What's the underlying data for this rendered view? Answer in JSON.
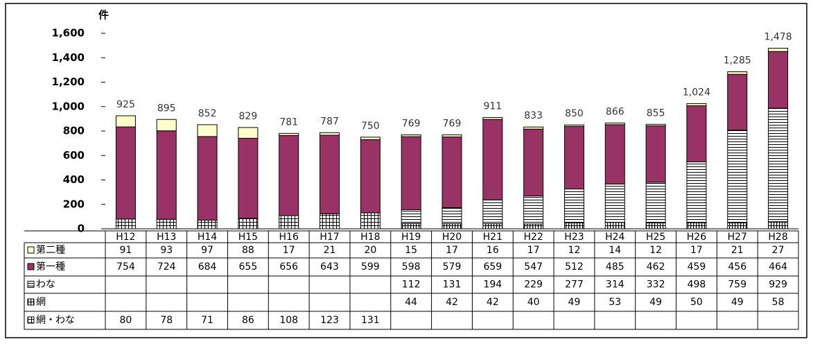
{
  "chart_data": {
    "type": "stacked-bar",
    "y_label": "件",
    "categories": [
      "H12",
      "H13",
      "H14",
      "H15",
      "H16",
      "H17",
      "H18",
      "H19",
      "H20",
      "H21",
      "H22",
      "H23",
      "H24",
      "H25",
      "H26",
      "H27",
      "H28"
    ],
    "series": [
      {
        "name": "第二種",
        "color": "#ffffcc",
        "values": [
          91,
          93,
          97,
          88,
          17,
          21,
          20,
          15,
          17,
          16,
          17,
          12,
          14,
          12,
          17,
          21,
          27
        ]
      },
      {
        "name": "第一種",
        "color": "#993366",
        "values": [
          754,
          724,
          684,
          655,
          656,
          643,
          599,
          598,
          579,
          659,
          547,
          512,
          485,
          462,
          459,
          456,
          464
        ]
      },
      {
        "name": "わな",
        "color": "#ffffff",
        "pattern": "horizontal",
        "values": [
          null,
          null,
          null,
          null,
          null,
          null,
          null,
          112,
          131,
          194,
          229,
          277,
          314,
          332,
          498,
          759,
          929
        ]
      },
      {
        "name": "網",
        "color": "#ffffff",
        "pattern": "vertical",
        "values": [
          null,
          null,
          null,
          null,
          null,
          null,
          null,
          44,
          42,
          42,
          40,
          49,
          53,
          49,
          50,
          49,
          58
        ]
      },
      {
        "name": "網・わな",
        "color": "#ffffff",
        "pattern": "grid",
        "values": [
          80,
          78,
          71,
          86,
          108,
          123,
          131,
          null,
          null,
          null,
          null,
          null,
          null,
          null,
          null,
          null,
          null
        ]
      }
    ],
    "totals": [
      925,
      895,
      852,
      829,
      781,
      787,
      750,
      769,
      769,
      911,
      833,
      850,
      866,
      855,
      1024,
      1285,
      1478
    ],
    "total_labels": [
      "925",
      "895",
      "852",
      "829",
      "781",
      "787",
      "750",
      "769",
      "769",
      "911",
      "833",
      "850",
      "866",
      "855",
      "1,024",
      "1,285",
      "1,478"
    ],
    "ylim": [
      0,
      1600
    ],
    "yticks": [
      0,
      200,
      400,
      600,
      800,
      {
        "value": 1000,
        "label": "1,000"
      },
      {
        "value": 1200,
        "label": "1,200"
      },
      {
        "value": 1400,
        "label": "1,400"
      },
      {
        "value": 1600,
        "label": "1,600"
      }
    ]
  }
}
